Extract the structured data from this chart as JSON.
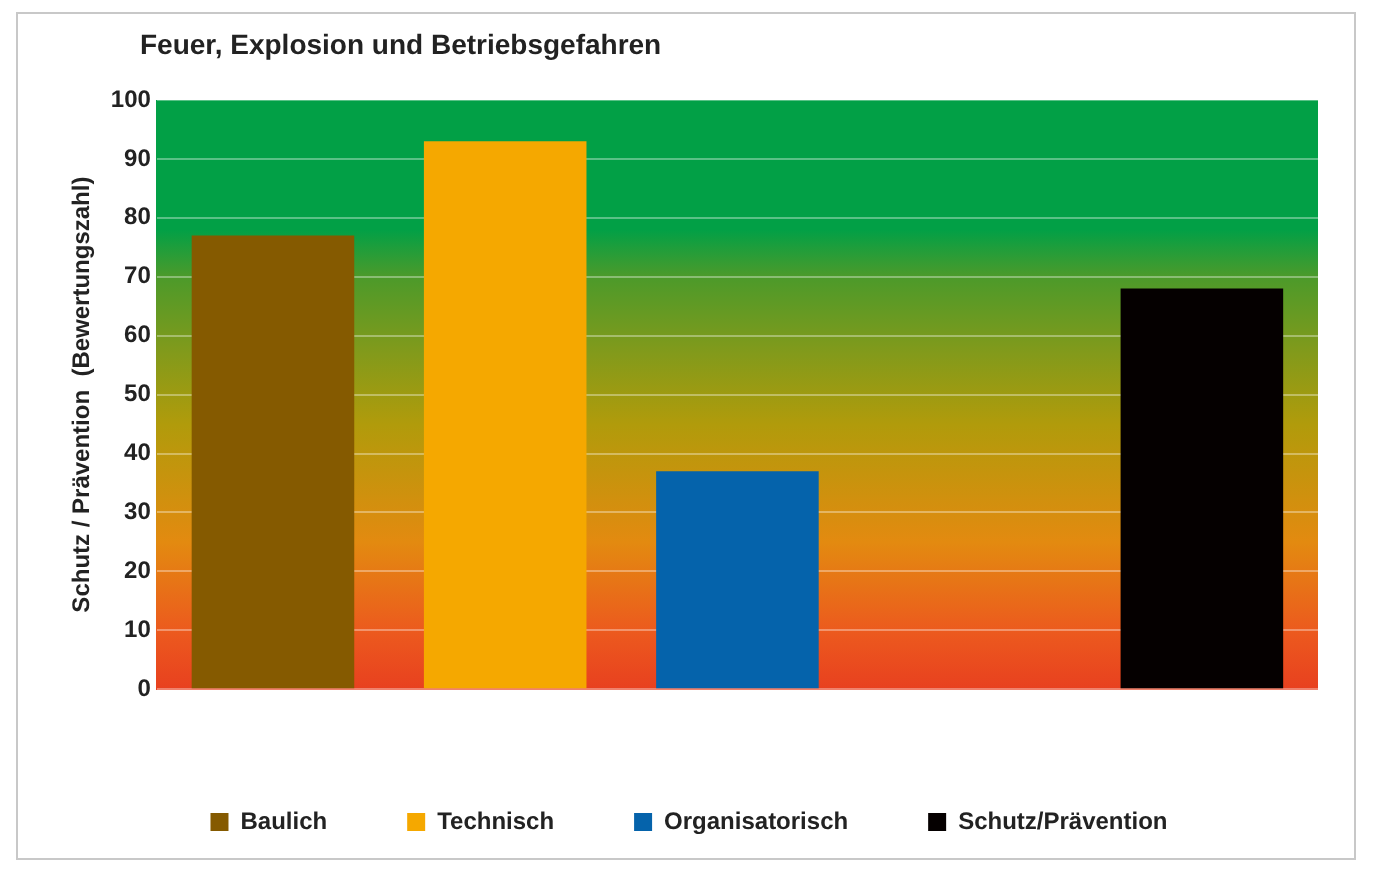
{
  "chart_data": {
    "type": "bar",
    "title": "Feuer, Explosion und Betriebsgefahren",
    "ylabel": "Schutz / Prävention  (Bewertungszahl)",
    "categories": [
      null,
      null,
      null,
      null,
      null
    ],
    "series": [
      {
        "name": "Baulich",
        "color": "#855a00",
        "values": [
          77,
          null,
          null,
          null,
          null
        ]
      },
      {
        "name": "Technisch",
        "color": "#f5a800",
        "values": [
          null,
          93,
          null,
          null,
          null
        ]
      },
      {
        "name": "Organisatorisch",
        "color": "#0563ab",
        "values": [
          null,
          null,
          37,
          null,
          null
        ]
      },
      {
        "name": "Schutz/Prävention",
        "color": "#050000",
        "values": [
          null,
          null,
          null,
          null,
          68
        ]
      }
    ],
    "ylim": [
      0,
      100
    ],
    "yticks": [
      0,
      10,
      20,
      30,
      40,
      50,
      60,
      70,
      80,
      90,
      100
    ],
    "grid": "y",
    "legend": "bottom"
  }
}
